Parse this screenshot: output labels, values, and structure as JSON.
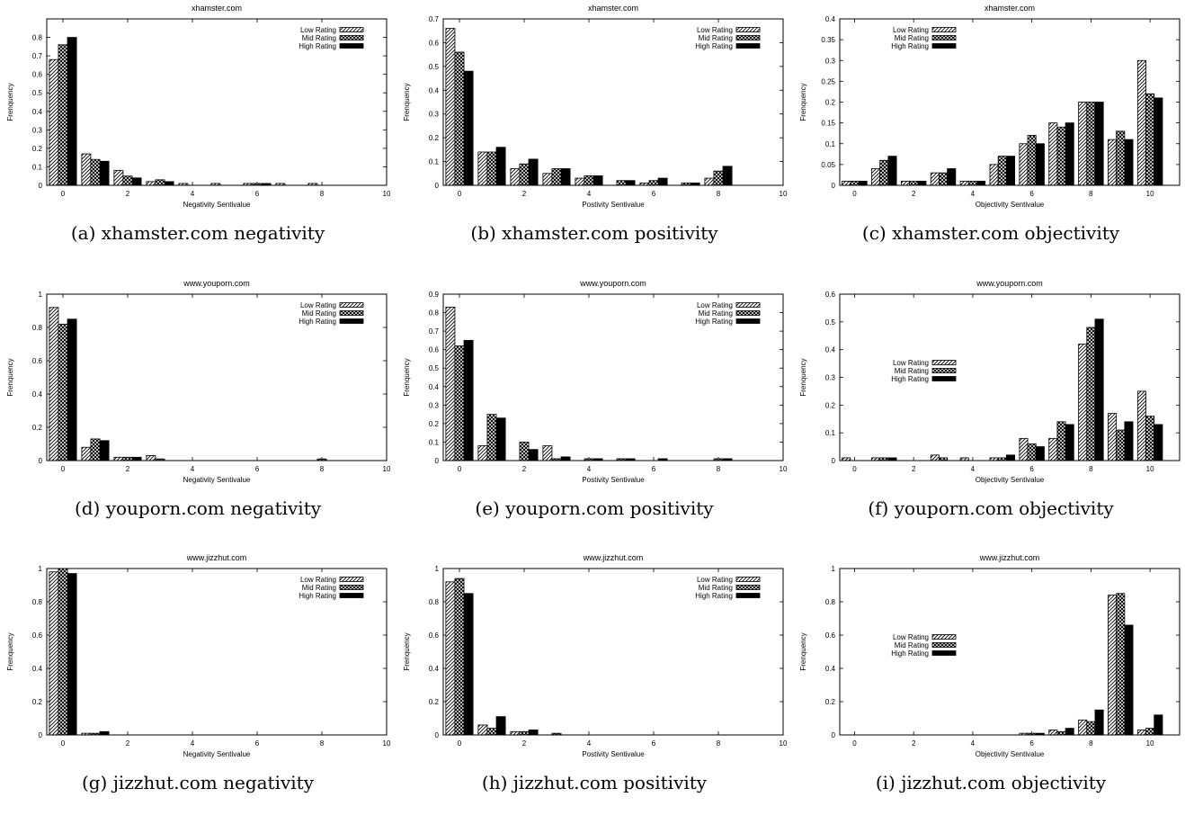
{
  "legend_labels": [
    "Low Rating",
    "Mid Rating",
    "High Rating"
  ],
  "chart_data": [
    {
      "type": "bar",
      "title": "xhamster.com",
      "caption": "(a) xhamster.com negativity",
      "xlabel": "Negativity Sentivalue",
      "ylabel": "Frenquency",
      "ylim": [
        0,
        0.9
      ],
      "yticks": [
        "0",
        "0.1",
        "0.2",
        "0.3",
        "0.4",
        "0.5",
        "0.6",
        "0.7",
        "0.8"
      ],
      "xlim": [
        -0.5,
        10
      ],
      "xticks": [
        "0",
        "2",
        "4",
        "6",
        "8",
        "10"
      ],
      "legend": "top-right",
      "series": [
        {
          "name": "Low Rating",
          "values": [
            0.68,
            0.17,
            0.08,
            0.02,
            0.01,
            0.01,
            0.01,
            0.01,
            0.01,
            0.0,
            0.0
          ]
        },
        {
          "name": "Mid Rating",
          "values": [
            0.76,
            0.14,
            0.05,
            0.03,
            0.0,
            0.0,
            0.01,
            0.0,
            0.0,
            0.0,
            0.0
          ]
        },
        {
          "name": "High Rating",
          "values": [
            0.8,
            0.13,
            0.04,
            0.02,
            0.0,
            0.0,
            0.01,
            0.0,
            0.0,
            0.0,
            0.0
          ]
        }
      ]
    },
    {
      "type": "bar",
      "title": "xhamster.com",
      "caption": "(b) xhamster.com positivity",
      "xlabel": "Postivity Sentivalue",
      "ylabel": "Frenquency",
      "ylim": [
        0,
        0.7
      ],
      "yticks": [
        "0",
        "0.1",
        "0.2",
        "0.3",
        "0.4",
        "0.5",
        "0.6",
        "0.7"
      ],
      "xlim": [
        -0.5,
        10
      ],
      "xticks": [
        "0",
        "2",
        "4",
        "6",
        "8",
        "10"
      ],
      "legend": "top-right",
      "series": [
        {
          "name": "Low Rating",
          "values": [
            0.66,
            0.14,
            0.07,
            0.05,
            0.03,
            0.0,
            0.01,
            0.0,
            0.03,
            0.0,
            0.0
          ]
        },
        {
          "name": "Mid Rating",
          "values": [
            0.56,
            0.14,
            0.09,
            0.07,
            0.04,
            0.02,
            0.02,
            0.01,
            0.06,
            0.0,
            0.0
          ]
        },
        {
          "name": "High Rating",
          "values": [
            0.48,
            0.16,
            0.11,
            0.07,
            0.04,
            0.02,
            0.03,
            0.01,
            0.08,
            0.0,
            0.0
          ]
        }
      ]
    },
    {
      "type": "bar",
      "title": "xhamster.com",
      "caption": "(c) xhamster.com objectivity",
      "xlabel": "Objectivity Sentivalue",
      "ylabel": "Frenquency",
      "ylim": [
        0,
        0.4
      ],
      "yticks": [
        "0",
        "0.05",
        "0.1",
        "0.15",
        "0.2",
        "0.25",
        "0.3",
        "0.35",
        "0.4"
      ],
      "xlim": [
        -0.5,
        11
      ],
      "xticks": [
        "0",
        "2",
        "4",
        "6",
        "8",
        "10"
      ],
      "legend": "top-left",
      "series": [
        {
          "name": "Low Rating",
          "values": [
            0.01,
            0.04,
            0.01,
            0.03,
            0.01,
            0.05,
            0.1,
            0.15,
            0.2,
            0.11,
            0.3
          ]
        },
        {
          "name": "Mid Rating",
          "values": [
            0.01,
            0.06,
            0.01,
            0.03,
            0.01,
            0.07,
            0.12,
            0.14,
            0.2,
            0.13,
            0.22
          ]
        },
        {
          "name": "High Rating",
          "values": [
            0.01,
            0.07,
            0.01,
            0.04,
            0.01,
            0.07,
            0.1,
            0.15,
            0.2,
            0.11,
            0.21
          ]
        }
      ]
    },
    {
      "type": "bar",
      "title": "www.youporn.com",
      "caption": "(d) youporn.com negativity",
      "xlabel": "Negativity Sentivalue",
      "ylabel": "Frenquency",
      "ylim": [
        0,
        1
      ],
      "yticks": [
        "0",
        "0.2",
        "0.4",
        "0.6",
        "0.8",
        "1"
      ],
      "xlim": [
        -0.5,
        10
      ],
      "xticks": [
        "0",
        "2",
        "4",
        "6",
        "8",
        "10"
      ],
      "legend": "top-right",
      "series": [
        {
          "name": "Low Rating",
          "values": [
            0.92,
            0.08,
            0.02,
            0.03,
            0.0,
            0.0,
            0.0,
            0.0,
            0.0,
            0.0,
            0.0
          ]
        },
        {
          "name": "Mid Rating",
          "values": [
            0.82,
            0.13,
            0.02,
            0.01,
            0.0,
            0.0,
            0.0,
            0.0,
            0.01,
            0.0,
            0.0
          ]
        },
        {
          "name": "High Rating",
          "values": [
            0.85,
            0.12,
            0.02,
            0.0,
            0.0,
            0.0,
            0.0,
            0.0,
            0.0,
            0.0,
            0.0
          ]
        }
      ]
    },
    {
      "type": "bar",
      "title": "www.youporn.com",
      "caption": "(e) youporn.com positivity",
      "xlabel": "Postivity Sentivalue",
      "ylabel": "Frenquency",
      "ylim": [
        0,
        0.9
      ],
      "yticks": [
        "0",
        "0.1",
        "0.2",
        "0.3",
        "0.4",
        "0.5",
        "0.6",
        "0.7",
        "0.8",
        "0.9"
      ],
      "xlim": [
        -0.5,
        10
      ],
      "xticks": [
        "0",
        "2",
        "4",
        "6",
        "8",
        "10"
      ],
      "legend": "top-right",
      "series": [
        {
          "name": "Low Rating",
          "values": [
            0.83,
            0.08,
            0.0,
            0.08,
            0.0,
            0.0,
            0.0,
            0.0,
            0.0,
            0.0,
            0.0
          ]
        },
        {
          "name": "Mid Rating",
          "values": [
            0.62,
            0.25,
            0.1,
            0.01,
            0.01,
            0.01,
            0.0,
            0.0,
            0.01,
            0.0,
            0.0
          ]
        },
        {
          "name": "High Rating",
          "values": [
            0.65,
            0.23,
            0.06,
            0.02,
            0.01,
            0.01,
            0.01,
            0.0,
            0.01,
            0.0,
            0.0
          ]
        }
      ]
    },
    {
      "type": "bar",
      "title": "www.youporn.com",
      "caption": "(f) youporn.com objectivity",
      "xlabel": "Objectivity Sentivalue",
      "ylabel": "Frenquency",
      "ylim": [
        0,
        0.6
      ],
      "yticks": [
        "0",
        "0.1",
        "0.2",
        "0.3",
        "0.4",
        "0.5",
        "0.6"
      ],
      "xlim": [
        -0.5,
        11
      ],
      "xticks": [
        "0",
        "2",
        "4",
        "6",
        "8",
        "10"
      ],
      "legend": "middle-left",
      "series": [
        {
          "name": "Low Rating",
          "values": [
            0.01,
            0.01,
            0.0,
            0.02,
            0.01,
            0.01,
            0.08,
            0.08,
            0.42,
            0.17,
            0.25
          ]
        },
        {
          "name": "Mid Rating",
          "values": [
            0.0,
            0.01,
            0.0,
            0.01,
            0.0,
            0.01,
            0.06,
            0.14,
            0.48,
            0.11,
            0.16
          ]
        },
        {
          "name": "High Rating",
          "values": [
            0.0,
            0.01,
            0.0,
            0.0,
            0.0,
            0.02,
            0.05,
            0.13,
            0.51,
            0.14,
            0.13
          ]
        }
      ]
    },
    {
      "type": "bar",
      "title": "www.jizzhut.com",
      "caption": "(g) jizzhut.com negativity",
      "xlabel": "Negativity Sentivalue",
      "ylabel": "Frenquency",
      "ylim": [
        0,
        1
      ],
      "yticks": [
        "0",
        "0.2",
        "0.4",
        "0.6",
        "0.8",
        "1"
      ],
      "xlim": [
        -0.5,
        10
      ],
      "xticks": [
        "0",
        "2",
        "4",
        "6",
        "8",
        "10"
      ],
      "legend": "top-right",
      "series": [
        {
          "name": "Low Rating",
          "values": [
            0.98,
            0.01,
            0.0,
            0.0,
            0.0,
            0.0,
            0.0,
            0.0,
            0.0,
            0.0,
            0.0
          ]
        },
        {
          "name": "Mid Rating",
          "values": [
            1.0,
            0.01,
            0.0,
            0.0,
            0.0,
            0.0,
            0.0,
            0.0,
            0.0,
            0.0,
            0.0
          ]
        },
        {
          "name": "High Rating",
          "values": [
            0.97,
            0.02,
            0.0,
            0.0,
            0.0,
            0.0,
            0.0,
            0.0,
            0.0,
            0.0,
            0.0
          ]
        }
      ]
    },
    {
      "type": "bar",
      "title": "www.jizzhut.com",
      "caption": "(h) jizzhut.com positivity",
      "xlabel": "Postivity Sentivalue",
      "ylabel": "Frenquency",
      "ylim": [
        0,
        1
      ],
      "yticks": [
        "0",
        "0.2",
        "0.4",
        "0.6",
        "0.8",
        "1"
      ],
      "xlim": [
        -0.5,
        10
      ],
      "xticks": [
        "0",
        "2",
        "4",
        "6",
        "8",
        "10"
      ],
      "legend": "top-right",
      "series": [
        {
          "name": "Low Rating",
          "values": [
            0.92,
            0.06,
            0.02,
            0.0,
            0.0,
            0.0,
            0.0,
            0.0,
            0.0,
            0.0,
            0.0
          ]
        },
        {
          "name": "Mid Rating",
          "values": [
            0.94,
            0.04,
            0.02,
            0.01,
            0.0,
            0.0,
            0.0,
            0.0,
            0.0,
            0.0,
            0.0
          ]
        },
        {
          "name": "High Rating",
          "values": [
            0.85,
            0.11,
            0.03,
            0.0,
            0.0,
            0.0,
            0.0,
            0.0,
            0.0,
            0.0,
            0.0
          ]
        }
      ]
    },
    {
      "type": "bar",
      "title": "www.jizzhut.com",
      "caption": "(i) jizzhut.com objectivity",
      "xlabel": "Objectivity Sentivalue",
      "ylabel": "Frenquency",
      "ylim": [
        0,
        1
      ],
      "yticks": [
        "0",
        "0.2",
        "0.4",
        "0.6",
        "0.8",
        "1"
      ],
      "xlim": [
        -0.5,
        11
      ],
      "xticks": [
        "0",
        "2",
        "4",
        "6",
        "8",
        "10"
      ],
      "legend": "middle-left",
      "series": [
        {
          "name": "Low Rating",
          "values": [
            0.0,
            0.0,
            0.0,
            0.0,
            0.0,
            0.0,
            0.01,
            0.03,
            0.09,
            0.84,
            0.03
          ]
        },
        {
          "name": "Mid Rating",
          "values": [
            0.0,
            0.0,
            0.0,
            0.0,
            0.0,
            0.0,
            0.01,
            0.02,
            0.08,
            0.85,
            0.04
          ]
        },
        {
          "name": "High Rating",
          "values": [
            0.0,
            0.0,
            0.0,
            0.0,
            0.0,
            0.0,
            0.01,
            0.04,
            0.15,
            0.66,
            0.12
          ]
        }
      ]
    }
  ]
}
